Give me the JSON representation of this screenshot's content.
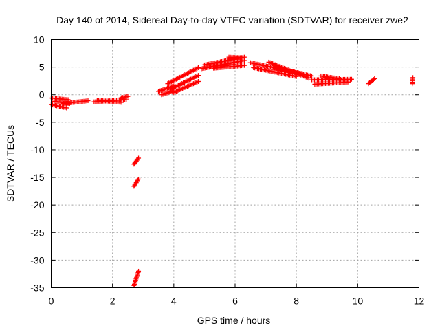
{
  "chart_data": {
    "type": "scatter",
    "title": "Day 140 of 2014, Sidereal Day-to-day VTEC variation (SDTVAR) for receiver zwe2",
    "xlabel": "GPS time / hours",
    "ylabel": "SDTVAR / TECUs",
    "xlim": [
      0,
      12
    ],
    "ylim": [
      -35,
      10
    ],
    "xticks": [
      0,
      2,
      4,
      6,
      8,
      10,
      12
    ],
    "yticks": [
      10,
      5,
      0,
      -5,
      -10,
      -15,
      -20,
      -25,
      -30,
      -35
    ],
    "grid": true,
    "marker": "plus",
    "marker_color": "#ff0000",
    "segments": [
      {
        "x0": 0.0,
        "x1": 0.55,
        "y0": -0.6,
        "y1": -0.9
      },
      {
        "x0": 0.0,
        "x1": 0.5,
        "y0": -1.8,
        "y1": -2.4
      },
      {
        "x0": 0.1,
        "x1": 0.6,
        "y0": -1.2,
        "y1": -1.6
      },
      {
        "x0": 0.4,
        "x1": 1.2,
        "y0": -1.6,
        "y1": -1.1
      },
      {
        "x0": 1.4,
        "x1": 2.45,
        "y0": -1.3,
        "y1": -0.9
      },
      {
        "x0": 1.5,
        "x1": 2.3,
        "y0": -1.0,
        "y1": -1.4
      },
      {
        "x0": 2.25,
        "x1": 2.5,
        "y0": -0.6,
        "y1": -0.3
      },
      {
        "x0": 2.7,
        "x1": 2.85,
        "y0": -12.6,
        "y1": -11.5
      },
      {
        "x0": 2.7,
        "x1": 2.85,
        "y0": -16.6,
        "y1": -15.3
      },
      {
        "x0": 2.7,
        "x1": 2.85,
        "y0": -34.6,
        "y1": -32.0
      },
      {
        "x0": 3.5,
        "x1": 4.0,
        "y0": 0.6,
        "y1": 1.6
      },
      {
        "x0": 3.6,
        "x1": 4.0,
        "y0": 0.0,
        "y1": 0.7
      },
      {
        "x0": 3.8,
        "x1": 4.8,
        "y0": 2.0,
        "y1": 4.9
      },
      {
        "x0": 3.9,
        "x1": 4.8,
        "y0": 1.0,
        "y1": 3.5
      },
      {
        "x0": 4.0,
        "x1": 4.8,
        "y0": 0.4,
        "y1": 2.4
      },
      {
        "x0": 4.9,
        "x1": 6.3,
        "y0": 4.7,
        "y1": 6.2
      },
      {
        "x0": 5.0,
        "x1": 6.3,
        "y0": 5.4,
        "y1": 6.8
      },
      {
        "x0": 5.3,
        "x1": 6.3,
        "y0": 4.8,
        "y1": 5.3
      },
      {
        "x0": 5.8,
        "x1": 6.25,
        "y0": 6.8,
        "y1": 6.7
      },
      {
        "x0": 6.5,
        "x1": 8.2,
        "y0": 5.8,
        "y1": 3.8
      },
      {
        "x0": 6.6,
        "x1": 8.0,
        "y0": 4.9,
        "y1": 3.3
      },
      {
        "x0": 7.1,
        "x1": 8.4,
        "y0": 5.9,
        "y1": 3.0
      },
      {
        "x0": 7.3,
        "x1": 8.5,
        "y0": 4.8,
        "y1": 3.4
      },
      {
        "x0": 8.5,
        "x1": 9.8,
        "y0": 2.7,
        "y1": 2.8
      },
      {
        "x0": 8.6,
        "x1": 9.7,
        "y0": 1.9,
        "y1": 2.3
      },
      {
        "x0": 8.8,
        "x1": 9.4,
        "y0": 3.4,
        "y1": 2.9
      },
      {
        "x0": 10.35,
        "x1": 10.55,
        "y0": 2.0,
        "y1": 2.9
      },
      {
        "x0": 11.78,
        "x1": 11.8,
        "y0": 2.0,
        "y1": 3.1
      }
    ]
  }
}
